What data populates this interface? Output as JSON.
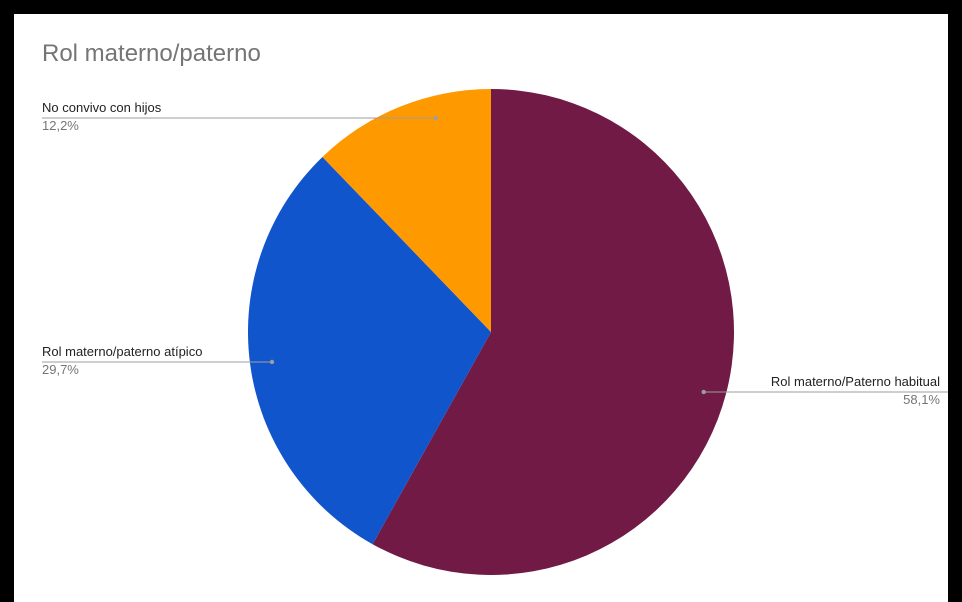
{
  "chart_data": {
    "type": "pie",
    "title": "Rol materno/paterno",
    "slices": [
      {
        "label": "Rol materno/Paterno habitual",
        "value": 58.1,
        "display": "58,1%",
        "color": "#701a45"
      },
      {
        "label": "Rol materno/paterno atípico",
        "value": 29.7,
        "display": "29,7%",
        "color": "#1155cc"
      },
      {
        "label": "No convivo con hijos",
        "value": 12.2,
        "display": "12,2%",
        "color": "#ff9900"
      }
    ]
  }
}
